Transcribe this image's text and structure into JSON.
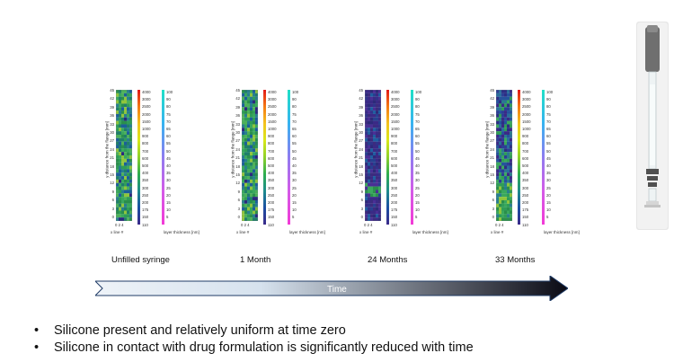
{
  "panels": [
    {
      "caption": "Unfilled syringe",
      "state": "uniform"
    },
    {
      "caption": "1 Month",
      "state": "uniform"
    },
    {
      "caption": "24 Months",
      "state": "reduced"
    },
    {
      "caption": "33 Months",
      "state": "partial"
    }
  ],
  "axes": {
    "y_label": "y distance from the flange [mm]",
    "y_ticks": [
      "45",
      "42",
      "39",
      "36",
      "33",
      "30",
      "27",
      "24",
      "21",
      "18",
      "15",
      "12",
      "9",
      "6",
      "3",
      "0"
    ],
    "x_label": "x line #",
    "x_ticks": "0 2 4",
    "scale1_ticks": [
      "4000",
      "3000",
      "2500",
      "2000",
      "1500",
      "1000",
      "900",
      "800",
      "700",
      "600",
      "500",
      "400",
      "350",
      "300",
      "250",
      "200",
      "175",
      "150",
      "110"
    ],
    "scale2_ticks": [
      "100",
      "90",
      "80",
      "75",
      "70",
      "65",
      "60",
      "55",
      "50",
      "45",
      "40",
      "35",
      "30",
      "25",
      "20",
      "15",
      "10",
      "5"
    ],
    "scale_title": "layer thickness [nm]"
  },
  "timeline": {
    "label": "Time"
  },
  "bullets": [
    {
      "glyph": "•",
      "text": "Silicone present and relatively uniform at time zero"
    },
    {
      "glyph": "•",
      "text": "Silicone in contact with drug formulation is significantly reduced with time"
    }
  ],
  "colors": {
    "scale1": [
      "#e11818",
      "#f47a14",
      "#f3c21f",
      "#d9e81a",
      "#8fd12b",
      "#2fae4f",
      "#1e8c8c",
      "#1b4fa3",
      "#3b2a8a"
    ],
    "scale2": [
      "#1fe0c6",
      "#37b3f0",
      "#8f7cf0",
      "#d45be8",
      "#f23ad6"
    ],
    "arrow": [
      "#eef3f8",
      "#d6e2ee",
      "#0a0a14"
    ]
  }
}
